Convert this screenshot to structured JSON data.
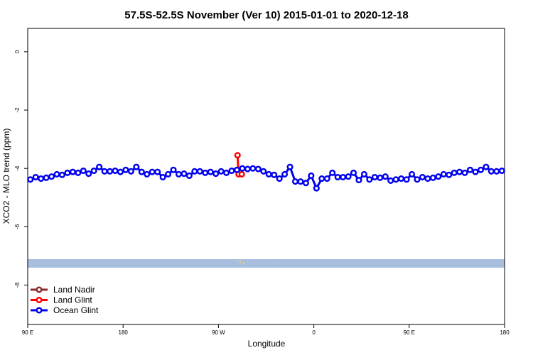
{
  "chart_data": {
    "type": "line",
    "title": "57.5S-52.5S November (Ver 10)   2015-01-01 to 2020-12-18",
    "xlabel": "Longitude",
    "ylabel": "XCO2 - MLO trend (ppm)",
    "xlim": [
      90,
      540
    ],
    "xticks": [
      {
        "value": 90,
        "label": "90 E"
      },
      180,
      {
        "value": 270,
        "label": "90 W"
      },
      {
        "value": 360,
        "label": "0"
      },
      {
        "value": 450,
        "label": "90 E"
      },
      {
        "value": 540,
        "label": "180"
      }
    ],
    "ylim": [
      -9.35,
      0.8
    ],
    "yticks": [
      0,
      -2,
      -4,
      -6,
      -8
    ],
    "legend": "bottom-left",
    "series": [
      {
        "name": "Land Nadir",
        "color": "#8b2a2a",
        "x": [],
        "values": []
      },
      {
        "name": "Land Glint",
        "color": "#ff0000",
        "x": [
          288,
          289,
          292
        ],
        "values": [
          -3.55,
          -4.2,
          -4.2
        ]
      },
      {
        "name": "Ocean Glint",
        "color": "#0000ee",
        "x": [
          92.5,
          97.5,
          102.5,
          107.5,
          112.5,
          117.5,
          122.5,
          127.5,
          132.5,
          137.5,
          142.5,
          147.5,
          152.5,
          157.5,
          162.5,
          167.5,
          172.5,
          177.5,
          182.5,
          187.5,
          192.5,
          197.5,
          202.5,
          207.5,
          212.5,
          217.5,
          222.5,
          227.5,
          232.5,
          237.5,
          242.5,
          247.5,
          252.5,
          257.5,
          262.5,
          267.5,
          272.5,
          277.5,
          282.5,
          287.5,
          292.5,
          297.5,
          302.5,
          307.5,
          312.5,
          317.5,
          322.5,
          327.5,
          332.5,
          337.5,
          342.5,
          347.5,
          352.5,
          357.5,
          362.5,
          367.5,
          372.5,
          377.5,
          382.5,
          387.5,
          392.5,
          397.5,
          402.5,
          407.5,
          412.5,
          417.5,
          422.5,
          427.5,
          432.5,
          437.5,
          442.5,
          447.5,
          452.5,
          457.5,
          462.5,
          467.5,
          472.5,
          477.5,
          482.5,
          487.5,
          492.5,
          497.5,
          502.5,
          507.5,
          512.5,
          517.5,
          522.5,
          527.5,
          532.5,
          537.5
        ],
        "values": [
          -4.38,
          -4.3,
          -4.35,
          -4.32,
          -4.28,
          -4.2,
          -4.22,
          -4.15,
          -4.12,
          -4.15,
          -4.08,
          -4.18,
          -4.08,
          -3.95,
          -4.1,
          -4.1,
          -4.08,
          -4.12,
          -4.05,
          -4.1,
          -3.95,
          -4.12,
          -4.2,
          -4.12,
          -4.12,
          -4.3,
          -4.2,
          -4.05,
          -4.2,
          -4.18,
          -4.25,
          -4.1,
          -4.1,
          -4.15,
          -4.12,
          -4.18,
          -4.1,
          -4.15,
          -4.08,
          -4.05,
          -4.0,
          -4.02,
          -4.0,
          -4.02,
          -4.1,
          -4.2,
          -4.22,
          -4.35,
          -4.2,
          -3.95,
          -4.45,
          -4.45,
          -4.5,
          -4.25,
          -4.68,
          -4.35,
          -4.35,
          -4.15,
          -4.3,
          -4.3,
          -4.28,
          -4.15,
          -4.4,
          -4.2,
          -4.38,
          -4.3,
          -4.32,
          -4.28,
          -4.42,
          -4.38,
          -4.35,
          -4.38,
          -4.2,
          -4.38,
          -4.3,
          -4.35,
          -4.32,
          -4.28,
          -4.2,
          -4.22,
          -4.15,
          -4.12,
          -4.15,
          -4.05,
          -4.12,
          -4.05,
          -3.95,
          -4.1,
          -4.1,
          -4.08
        ]
      }
    ]
  }
}
